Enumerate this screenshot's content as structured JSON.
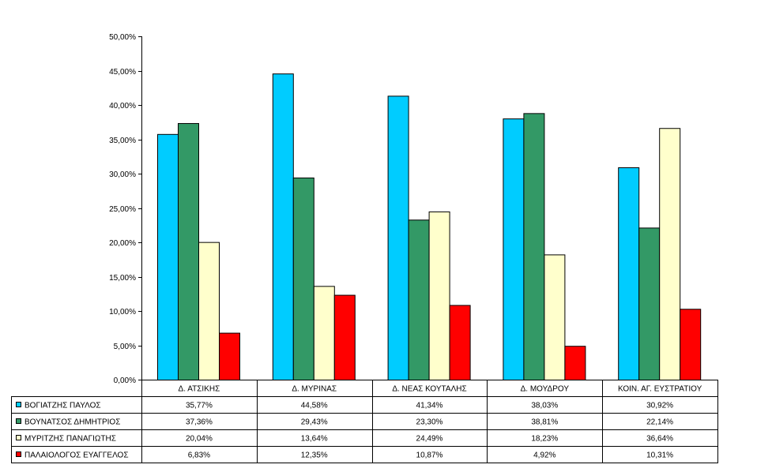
{
  "chart_data": {
    "type": "bar",
    "categories": [
      "Δ. ΑΤΣΙΚΗΣ",
      "Δ. ΜΥΡΙΝΑΣ",
      "Δ. ΝΕΑΣ ΚΟΥΤΑΛΗΣ",
      "Δ. ΜΟΥΔΡΟΥ",
      "ΚΟΙΝ. ΑΓ. ΕΥΣΤΡΑΤΙΟΥ"
    ],
    "series": [
      {
        "name": "ΒΟΓΙΑΤΖΗΣ ΠΑΥΛΟΣ",
        "color": "#00CCFF",
        "values": [
          35.77,
          44.58,
          41.34,
          38.03,
          30.92
        ],
        "labels": [
          "35,77%",
          "44,58%",
          "41,34%",
          "38,03%",
          "30,92%"
        ]
      },
      {
        "name": "ΒΟΥΝΑΤΣΟΣ ΔΗΜΗΤΡΙΟΣ",
        "color": "#339966",
        "values": [
          37.36,
          29.43,
          23.3,
          38.81,
          22.14
        ],
        "labels": [
          "37,36%",
          "29,43%",
          "23,30%",
          "38,81%",
          "22,14%"
        ]
      },
      {
        "name": "ΜΥΡΙΤΖΗΣ ΠΑΝΑΓΙΩΤΗΣ",
        "color": "#FFFFCC",
        "values": [
          20.04,
          13.64,
          24.49,
          18.23,
          36.64
        ],
        "labels": [
          "20,04%",
          "13,64%",
          "24,49%",
          "18,23%",
          "36,64%"
        ]
      },
      {
        "name": "ΠΑΛΑΙΟΛΟΓΟΣ ΕΥΑΓΓΕΛΟΣ",
        "color": "#FF0000",
        "values": [
          6.83,
          12.35,
          10.87,
          4.92,
          10.31
        ],
        "labels": [
          "6,83%",
          "12,35%",
          "10,87%",
          "4,92%",
          "10,31%"
        ]
      }
    ],
    "ylim": [
      0,
      50
    ],
    "yticks": [
      0,
      5,
      10,
      15,
      20,
      25,
      30,
      35,
      40,
      45,
      50
    ],
    "ytick_labels": [
      "0,00%",
      "5,00%",
      "10,00%",
      "15,00%",
      "20,00%",
      "25,00%",
      "30,00%",
      "35,00%",
      "40,00%",
      "45,00%",
      "50,00%"
    ],
    "grid": false,
    "legend": "data-table-below"
  }
}
